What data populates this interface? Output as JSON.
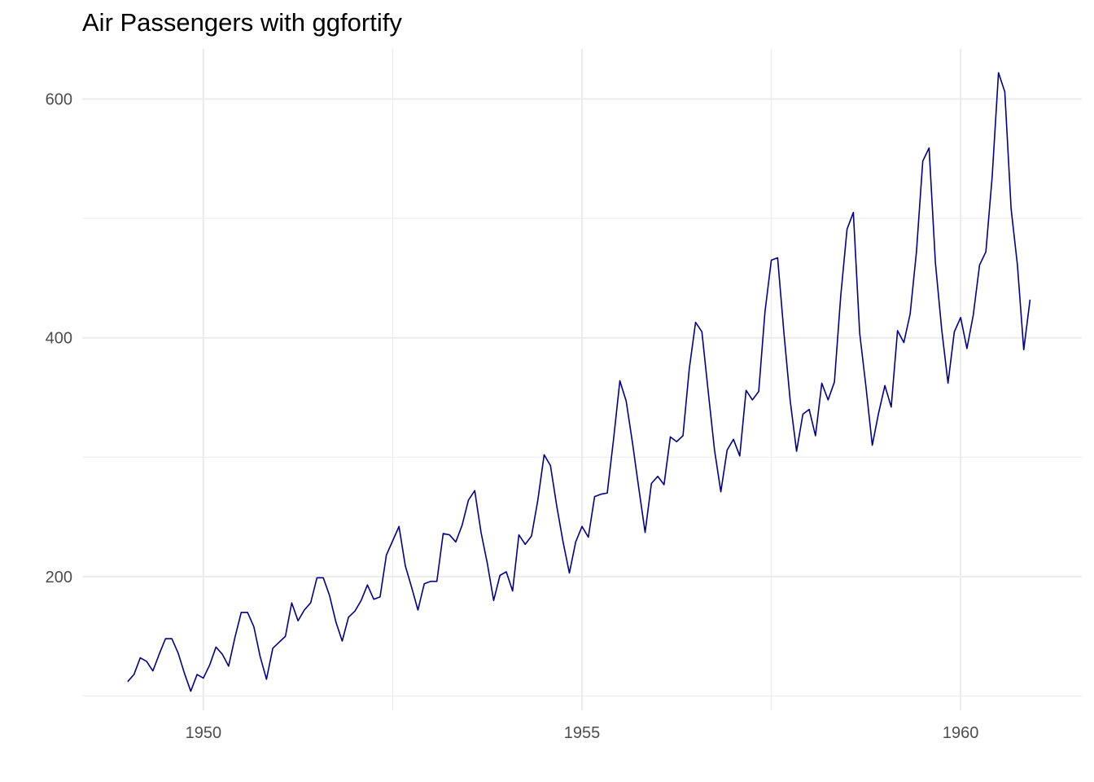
{
  "chart_data": {
    "type": "line",
    "title": "Air Passengers with ggfortify",
    "xlabel": "",
    "ylabel": "",
    "x_start": 1949.0,
    "x_step": 0.08333333,
    "xlim": [
      1948.4,
      1961.6
    ],
    "ylim": [
      88,
      642
    ],
    "x_ticks": [
      1950,
      1955,
      1960
    ],
    "y_ticks": [
      200,
      400,
      600
    ],
    "grid": true,
    "line_color": "#00008B",
    "series": [
      {
        "values": [
          112,
          118,
          132,
          129,
          121,
          135,
          148,
          148,
          136,
          119,
          104,
          118,
          115,
          126,
          141,
          135,
          125,
          149,
          170,
          170,
          158,
          133,
          114,
          140,
          145,
          150,
          178,
          163,
          172,
          178,
          199,
          199,
          184,
          162,
          146,
          166,
          171,
          180,
          193,
          181,
          183,
          218,
          230,
          242,
          209,
          191,
          172,
          194,
          196,
          196,
          236,
          235,
          229,
          243,
          264,
          272,
          237,
          211,
          180,
          201,
          204,
          188,
          235,
          227,
          234,
          264,
          302,
          293,
          259,
          229,
          203,
          229,
          242,
          233,
          267,
          269,
          270,
          315,
          364,
          347,
          312,
          274,
          237,
          278,
          284,
          277,
          317,
          313,
          318,
          374,
          413,
          405,
          355,
          306,
          271,
          306,
          315,
          301,
          356,
          348,
          355,
          422,
          465,
          467,
          404,
          347,
          305,
          336,
          340,
          318,
          362,
          348,
          363,
          435,
          491,
          505,
          404,
          359,
          310,
          337,
          360,
          342,
          406,
          396,
          420,
          472,
          548,
          559,
          463,
          407,
          362,
          405,
          417,
          391,
          419,
          461,
          472,
          535,
          622,
          606,
          508,
          461,
          390,
          432
        ]
      }
    ]
  }
}
